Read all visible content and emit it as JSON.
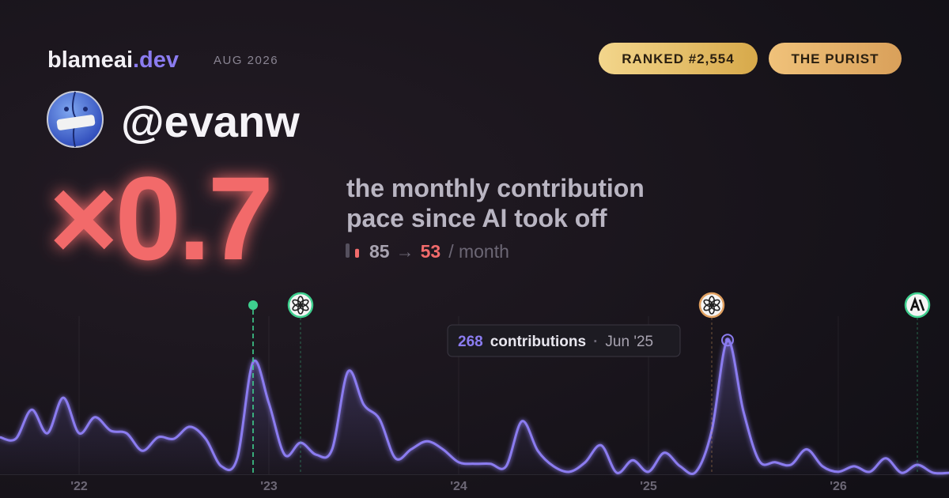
{
  "brand": {
    "name": "blameai",
    "tld": ".dev",
    "period": "AUG 2026"
  },
  "badges": [
    "RANKED #2,554",
    "THE PURIST"
  ],
  "user": {
    "handle": "@evanw"
  },
  "headline": {
    "multiplier": "×0.7",
    "description_lines": [
      "the monthly contribution",
      "pace since AI took off"
    ],
    "before": 85,
    "arrow": "→",
    "after": 53,
    "unit": "/ month"
  },
  "chart_data": {
    "type": "line",
    "x": [
      "2021-08",
      "2021-09",
      "2021-10",
      "2021-11",
      "2021-12",
      "2022-01",
      "2022-02",
      "2022-03",
      "2022-04",
      "2022-05",
      "2022-06",
      "2022-07",
      "2022-08",
      "2022-09",
      "2022-10",
      "2022-11",
      "2022-12",
      "2023-01",
      "2023-02",
      "2023-03",
      "2023-04",
      "2023-05",
      "2023-06",
      "2023-07",
      "2023-08",
      "2023-09",
      "2023-10",
      "2023-11",
      "2023-12",
      "2024-01",
      "2024-02",
      "2024-03",
      "2024-04",
      "2024-05",
      "2024-06",
      "2024-07",
      "2024-08",
      "2024-09",
      "2024-10",
      "2024-11",
      "2024-12",
      "2025-01",
      "2025-02",
      "2025-03",
      "2025-04",
      "2025-05",
      "2025-06",
      "2025-07",
      "2025-08",
      "2025-09",
      "2025-10",
      "2025-11",
      "2025-12",
      "2026-01",
      "2026-02",
      "2026-03",
      "2026-04",
      "2026-05",
      "2026-06",
      "2026-07",
      "2026-08"
    ],
    "values": [
      74,
      71,
      129,
      82,
      153,
      82,
      114,
      87,
      82,
      47,
      74,
      71,
      95,
      71,
      16,
      32,
      224,
      142,
      39,
      63,
      39,
      50,
      205,
      139,
      110,
      32,
      50,
      66,
      50,
      24,
      21,
      21,
      16,
      106,
      47,
      16,
      5,
      24,
      58,
      3,
      28,
      5,
      43,
      16,
      5,
      87,
      268,
      126,
      27,
      24,
      19,
      50,
      16,
      5,
      16,
      5,
      32,
      3,
      19,
      3,
      3
    ],
    "color": "#8b7cf0",
    "ylim": [
      0,
      300
    ],
    "xticks": [
      {
        "value": "2022-01",
        "label": "'22"
      },
      {
        "value": "2023-01",
        "label": "'23"
      },
      {
        "value": "2024-01",
        "label": "'24"
      },
      {
        "value": "2025-01",
        "label": "'25"
      },
      {
        "value": "2026-01",
        "label": "'26"
      }
    ],
    "grid": true,
    "tooltip": {
      "label": "contributions",
      "date": "Jun '25"
    },
    "events": [
      {
        "x": "2022-12",
        "marker": "dot",
        "color": "#3ecf8e"
      },
      {
        "x": "2023-03",
        "marker": "openai",
        "color": "#3ecf8e"
      },
      {
        "x": "2025-05",
        "marker": "openai",
        "color": "#e0a060"
      },
      {
        "x": "2026-06",
        "marker": "anthropic",
        "color": "#3ecf8e"
      }
    ]
  }
}
